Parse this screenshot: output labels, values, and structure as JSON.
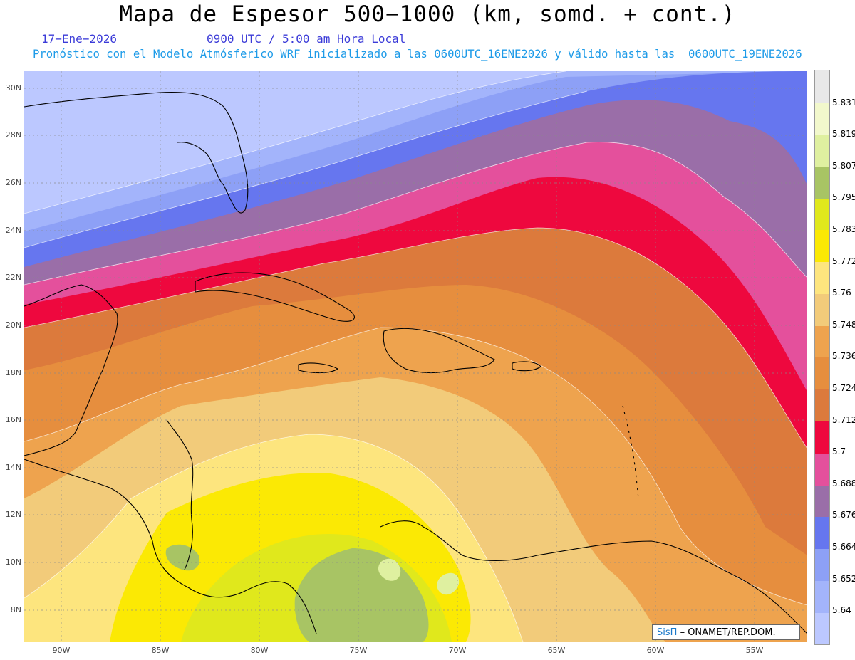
{
  "header": {
    "title": "Mapa de Espesor 500−1000 (km, somd. + cont.)",
    "date": "17−Ene−2026",
    "time": "0900 UTC / 5:00 am Hora Local",
    "forecast_line": "Pronóstico con el Modelo Atmósferico WRF inicializado a las 0600UTC_16ENE2026 y válido hasta las  0600UTC_19ENE2026"
  },
  "map": {
    "lat_labels": [
      "30N",
      "28N",
      "26N",
      "24N",
      "22N",
      "20N",
      "18N",
      "16N",
      "14N",
      "12N",
      "10N",
      "8N"
    ],
    "lon_labels": [
      "90W",
      "85W",
      "80W",
      "75W",
      "70W",
      "65W",
      "60W",
      "55W"
    ]
  },
  "colorbar": {
    "labels": [
      "5.831",
      "5.819",
      "5.807",
      "5.795",
      "5.783",
      "5.772",
      "5.76",
      "5.748",
      "5.736",
      "5.724",
      "5.712",
      "5.7",
      "5.688",
      "5.676",
      "5.664",
      "5.652",
      "5.64"
    ],
    "colors": [
      "#bcc8ff",
      "#a3b4fb",
      "#8da0f6",
      "#6676ef",
      "#9a6ea8",
      "#e4509c",
      "#ee083e",
      "#dc7a3c",
      "#e68e3e",
      "#eea34e",
      "#f2cb7a",
      "#fde57e",
      "#fbe904",
      "#e0e81c",
      "#a8c464",
      "#dff0a0",
      "#f2f8cc",
      "#e8e8e8"
    ]
  },
  "credit": {
    "brand": "SisΠ",
    "org": "– ONAMET/REP.DOM."
  }
}
